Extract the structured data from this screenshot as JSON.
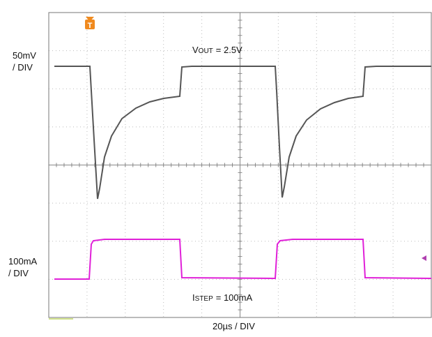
{
  "scope": {
    "channel1_scale": {
      "value": "50mV",
      "unit": "/ DIV"
    },
    "channel2_scale": {
      "value": "100mA",
      "unit": "/ DIV"
    },
    "vout_label": {
      "symbol": "V",
      "subscript": "OUT",
      "text": "= 2.5V"
    },
    "istep_label": {
      "symbol": "I",
      "subscript": "STEP",
      "text": "= 100mA"
    },
    "time_scale": "20µs / DIV",
    "trigger_marker": "T"
  }
}
